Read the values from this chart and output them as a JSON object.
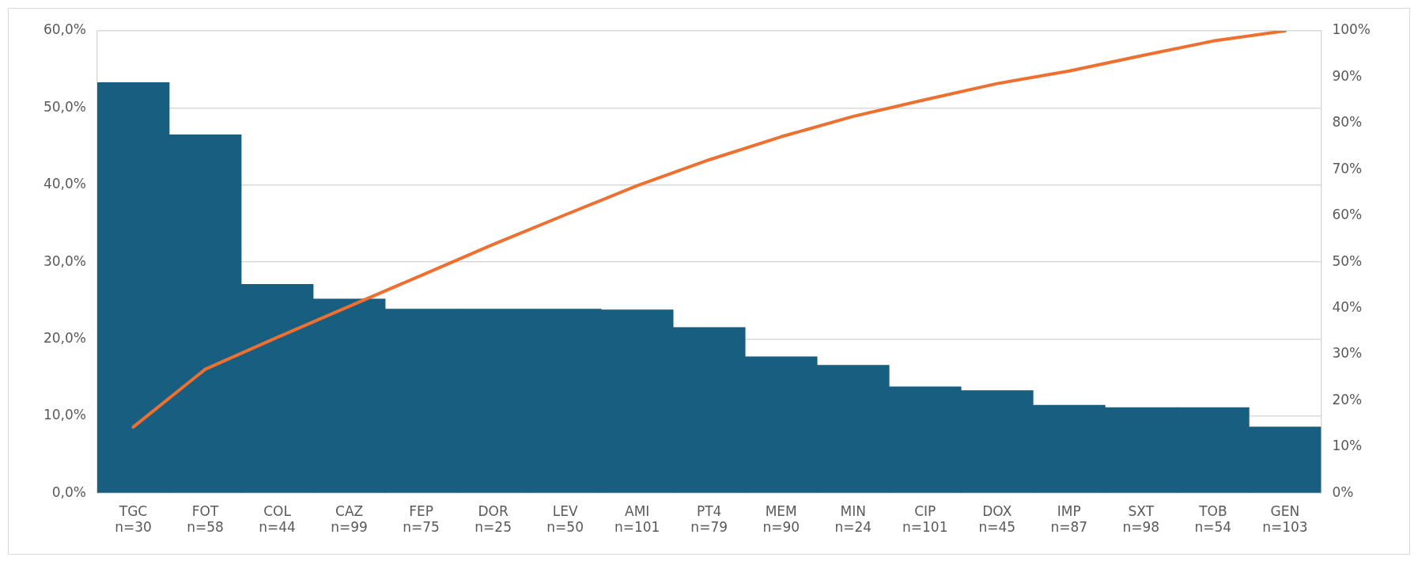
{
  "chart_data": {
    "type": "bar",
    "categories": [
      "TGC\nn=30",
      "FOT\nn=58",
      "COL\nn=44",
      "CAZ\nn=99",
      "FEP\nn=75",
      "DOR\nn=25",
      "LEV\nn=50",
      "AMI\nn=101",
      "PT4\nn=79",
      "MEM\nn=90",
      "MIN\nn=24",
      "CIP\nn=101",
      "DOX\nn=45",
      "IMP\nn=87",
      "SXT\nn=98",
      "TOB\nn=54",
      "GEN\nn=103"
    ],
    "series": [
      {
        "color": "#175e80",
        "values": [
          53.3,
          46.5,
          27.1,
          25.2,
          23.9,
          23.9,
          23.9,
          23.8,
          21.5,
          17.7,
          16.6,
          13.8,
          13.3,
          11.4,
          11.1,
          11.1,
          8.6
        ]
      },
      {
        "type": "line",
        "axis": "y2",
        "color": "#ed7031",
        "values": [
          14.3,
          26.8,
          33.7,
          40.4,
          47.1,
          53.8,
          60.2,
          66.5,
          72.1,
          77.1,
          81.5,
          85.1,
          88.6,
          91.3,
          94.6,
          97.8,
          100
        ]
      }
    ],
    "ylim": [
      0,
      60
    ],
    "yticks": [
      {
        "value": 0,
        "label": "0,0%"
      },
      {
        "value": 10,
        "label": "10,0%"
      },
      {
        "value": 20,
        "label": "20,0%"
      },
      {
        "value": 30,
        "label": "30,0%"
      },
      {
        "value": 40,
        "label": "40,0%"
      },
      {
        "value": 50,
        "label": "50,0%"
      },
      {
        "value": 60,
        "label": "60,0%"
      }
    ],
    "y2lim": [
      0,
      100
    ],
    "y2ticks": [
      {
        "value": 0,
        "label": "0%"
      },
      {
        "value": 10,
        "label": "10%"
      },
      {
        "value": 20,
        "label": "20%"
      },
      {
        "value": 30,
        "label": "30%"
      },
      {
        "value": 40,
        "label": "40%"
      },
      {
        "value": 50,
        "label": "50%"
      },
      {
        "value": 60,
        "label": "60%"
      },
      {
        "value": 70,
        "label": "70%"
      },
      {
        "value": 80,
        "label": "80%"
      },
      {
        "value": 90,
        "label": "90%"
      },
      {
        "value": 100,
        "label": "100%"
      }
    ],
    "grid": "y",
    "legend": false,
    "marker": "none",
    "line_style": "solid"
  }
}
